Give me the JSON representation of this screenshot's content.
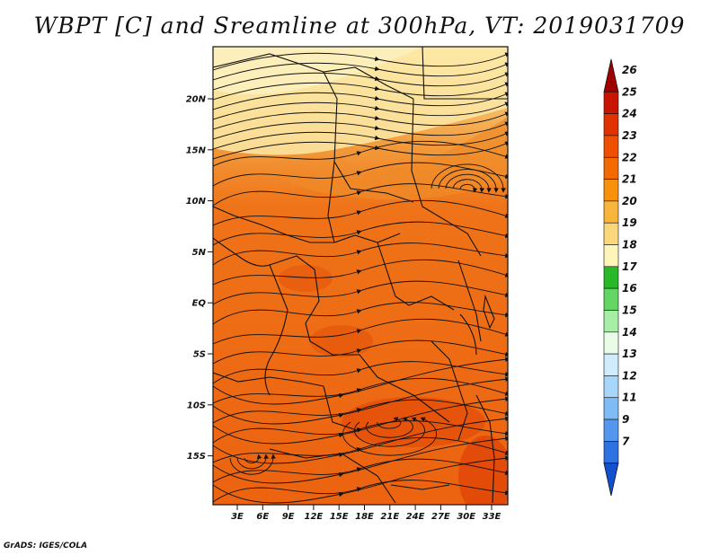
{
  "title": "WBPT [C] and Sreamline at 300hPa, VT: 2019031709",
  "credit": "GrADS: IGES/COLA",
  "map": {
    "lon_labels": [
      "3E",
      "6E",
      "9E",
      "12E",
      "15E",
      "18E",
      "21E",
      "24E",
      "27E",
      "30E",
      "33E"
    ],
    "lat_labels": [
      "20N",
      "15N",
      "10N",
      "5N",
      "EQ",
      "5S",
      "10S",
      "15S"
    ]
  },
  "colorbar": {
    "labels": [
      "26",
      "25",
      "24",
      "23",
      "22",
      "21",
      "20",
      "19",
      "18",
      "17",
      "16",
      "15",
      "14",
      "13",
      "12",
      "11",
      "9",
      "7"
    ],
    "colors": [
      "#a00000",
      "#c81400",
      "#e03200",
      "#ef4f00",
      "#f26a00",
      "#f7900a",
      "#f9b43c",
      "#fbd77c",
      "#fdf5b8",
      "#28b828",
      "#64d664",
      "#a6eda6",
      "#e8fce8",
      "#d0ecfc",
      "#a8d6fa",
      "#7fbcf6",
      "#5398ee",
      "#2c72e0",
      "#1250d0"
    ]
  }
}
